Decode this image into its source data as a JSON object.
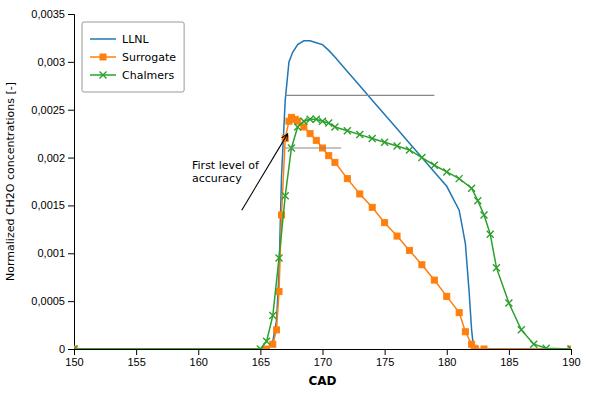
{
  "chart_data": {
    "type": "line",
    "xlabel": "CAD",
    "ylabel": "Normalized CH2O concentrations [-]",
    "xlim": [
      150,
      190
    ],
    "ylim": [
      0,
      0.0035
    ],
    "xticks": [
      150,
      155,
      160,
      165,
      170,
      175,
      180,
      185,
      190
    ],
    "yticks": [
      0,
      {
        "value": 0.0005,
        "label": "0,0005"
      },
      {
        "value": 0.001,
        "label": "0,001"
      },
      {
        "value": 0.0015,
        "label": "0,0015"
      },
      {
        "value": 0.002,
        "label": "0,002"
      },
      {
        "value": 0.0025,
        "label": "0,0025"
      },
      {
        "value": 0.003,
        "label": "0,003"
      },
      {
        "value": 0.0035,
        "label": "0,0035"
      }
    ],
    "grid": false,
    "legend": "upper left",
    "series": [
      {
        "name": "LLNL",
        "marker": "none",
        "line_style": "solid",
        "x": [
          150,
          165.0,
          165.8,
          166.0,
          166.3,
          166.5,
          166.7,
          167.0,
          167.3,
          167.6,
          168.0,
          168.5,
          169.0,
          169.5,
          170.0,
          170.5,
          171.0,
          172.0,
          173.0,
          174.0,
          175.0,
          176.0,
          177.0,
          178.0,
          179.0,
          180.0,
          181.0,
          181.5,
          181.8,
          182.0,
          182.1,
          182.2,
          182.3,
          182.4,
          182.5,
          183.0,
          190.0
        ],
        "values": [
          0,
          0,
          3e-05,
          8e-05,
          0.0003,
          0.0008,
          0.0018,
          0.0026,
          0.003,
          0.0031,
          0.00318,
          0.00322,
          0.00322,
          0.0032,
          0.00318,
          0.00312,
          0.00305,
          0.0029,
          0.00275,
          0.0026,
          0.00245,
          0.0023,
          0.00215,
          0.002,
          0.00185,
          0.0017,
          0.00145,
          0.0011,
          0.0006,
          0.0002,
          8e-05,
          2e-05,
          5e-06,
          0,
          0,
          0,
          0
        ]
      },
      {
        "name": "Surrogate",
        "marker": "square",
        "line_style": "solid",
        "x": [
          150,
          165.5,
          166.0,
          166.3,
          166.5,
          166.7,
          167.0,
          167.3,
          167.5,
          167.8,
          168.0,
          168.5,
          169.0,
          169.5,
          170.0,
          170.5,
          171.0,
          172.0,
          173.0,
          174.0,
          175.0,
          176.0,
          177.0,
          178.0,
          179.0,
          180.0,
          181.0,
          181.5,
          182.0,
          182.2,
          182.3,
          183.0,
          190.0
        ],
        "values": [
          0,
          0,
          5e-05,
          0.0002,
          0.0006,
          0.0014,
          0.0022,
          0.00238,
          0.00242,
          0.0024,
          0.00238,
          0.00232,
          0.00225,
          0.00218,
          0.0021,
          0.00202,
          0.00195,
          0.00178,
          0.00162,
          0.00148,
          0.00132,
          0.00118,
          0.00103,
          0.00088,
          0.00072,
          0.00055,
          0.00038,
          0.00018,
          5e-05,
          8e-06,
          0,
          0,
          0
        ]
      },
      {
        "name": "Chalmers",
        "marker": "x",
        "line_style": "solid",
        "x": [
          150,
          165.0,
          165.5,
          166.0,
          166.5,
          167.0,
          167.5,
          168.0,
          168.5,
          169.0,
          169.5,
          170.0,
          170.5,
          171.0,
          172.0,
          173.0,
          174.0,
          175.0,
          176.0,
          177.0,
          178.0,
          179.0,
          180.0,
          181.0,
          182.0,
          182.5,
          183.0,
          183.5,
          184.0,
          185.0,
          186.0,
          187.0,
          188.0,
          190.0
        ],
        "values": [
          0,
          0,
          8e-05,
          0.00035,
          0.00095,
          0.0016,
          0.0021,
          0.00232,
          0.00238,
          0.0024,
          0.0024,
          0.00238,
          0.00236,
          0.00232,
          0.00228,
          0.00224,
          0.0022,
          0.00216,
          0.00212,
          0.00208,
          0.002,
          0.00192,
          0.00185,
          0.00178,
          0.00168,
          0.00155,
          0.0014,
          0.0012,
          0.00085,
          0.00048,
          0.0002,
          5e-05,
          8e-06,
          0
        ]
      }
    ],
    "annotations": [
      {
        "text": "First level of\naccuracy",
        "x": 159.5,
        "y": 0.00185,
        "arrow_from": [
          163.5,
          0.00145
        ],
        "arrow_to": [
          167.2,
          0.00225
        ]
      },
      {
        "type": "line",
        "x": [
          167.0,
          179.0
        ],
        "y": [
          0.00265,
          0.00265
        ]
      },
      {
        "type": "line",
        "x": [
          167.0,
          171.5
        ],
        "y": [
          0.0021,
          0.0021
        ]
      }
    ]
  }
}
